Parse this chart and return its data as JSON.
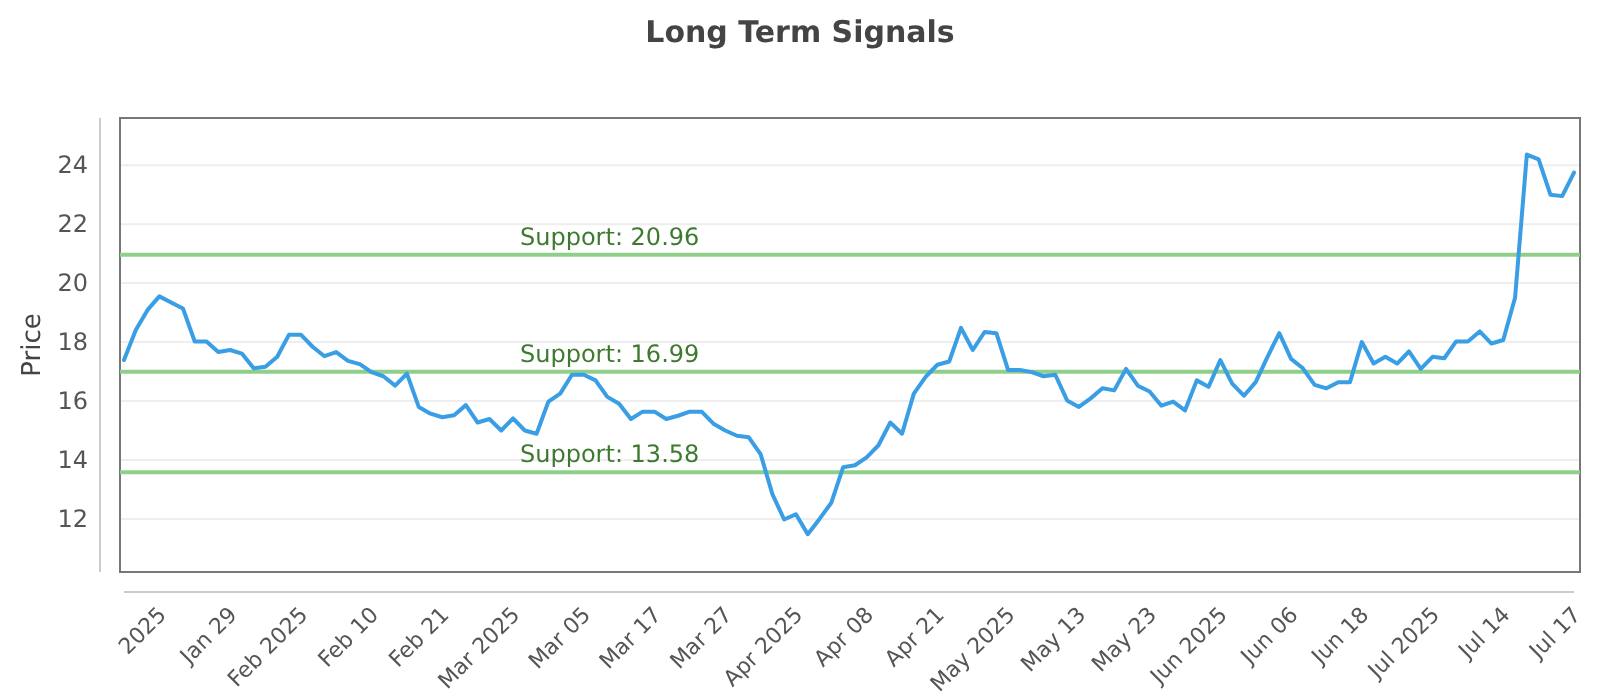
{
  "chart_data": {
    "type": "line",
    "title": "Long Term Signals",
    "ylabel": "Price",
    "categories": [
      null,
      null,
      null,
      "2025",
      null,
      null,
      null,
      null,
      null,
      "Jan 29",
      null,
      null,
      null,
      null,
      null,
      "Feb 2025",
      null,
      null,
      null,
      null,
      null,
      "Feb 10",
      null,
      null,
      null,
      null,
      null,
      "Feb 21",
      null,
      null,
      null,
      null,
      null,
      "Mar 2025",
      null,
      null,
      null,
      null,
      null,
      "Mar 05",
      null,
      null,
      null,
      null,
      null,
      "Mar 17",
      null,
      null,
      null,
      null,
      null,
      "Mar 27",
      null,
      null,
      null,
      null,
      null,
      "Apr 2025",
      null,
      null,
      null,
      null,
      null,
      "Apr 08",
      null,
      null,
      null,
      null,
      null,
      "Apr 21",
      null,
      null,
      null,
      null,
      null,
      "May 2025",
      null,
      null,
      null,
      null,
      null,
      "May 13",
      null,
      null,
      null,
      null,
      null,
      "May 23",
      null,
      null,
      null,
      null,
      null,
      "Jun 2025",
      null,
      null,
      null,
      null,
      null,
      "Jun 06",
      null,
      null,
      null,
      null,
      null,
      "Jun 18",
      null,
      null,
      null,
      null,
      null,
      "Jul 2025",
      null,
      null,
      null,
      null,
      null,
      "Jul 14",
      null,
      null,
      null,
      null,
      null,
      "Jul 17"
    ],
    "series": [
      {
        "color": "#3a9ee4",
        "values": [
          17.39,
          18.41,
          19.09,
          19.55,
          19.34,
          19.14,
          18.02,
          18.02,
          17.66,
          17.73,
          17.61,
          17.11,
          17.16,
          17.5,
          18.25,
          18.25,
          17.84,
          17.52,
          17.66,
          17.36,
          17.25,
          16.98,
          16.84,
          16.52,
          16.93,
          15.8,
          15.57,
          15.45,
          15.52,
          15.86,
          15.27,
          15.39,
          15.0,
          15.41,
          15.0,
          14.89,
          15.98,
          16.25,
          16.89,
          16.89,
          16.7,
          16.14,
          15.91,
          15.39,
          15.64,
          15.64,
          15.39,
          15.5,
          15.64,
          15.64,
          15.23,
          15.0,
          14.82,
          14.77,
          14.2,
          12.84,
          11.98,
          12.16,
          11.48,
          12.0,
          12.55,
          13.75,
          13.82,
          14.09,
          14.5,
          15.27,
          14.89,
          16.25,
          16.82,
          17.23,
          17.34,
          18.48,
          17.73,
          18.34,
          18.3,
          17.05,
          17.05,
          16.98,
          16.84,
          16.89,
          16.02,
          15.8,
          16.09,
          16.43,
          16.36,
          17.09,
          16.52,
          16.32,
          15.84,
          15.98,
          15.68,
          16.7,
          16.48,
          17.39,
          16.59,
          16.18,
          16.64,
          17.5,
          18.3,
          17.43,
          17.11,
          16.55,
          16.43,
          16.64,
          16.64,
          18.0,
          17.27,
          17.5,
          17.27,
          17.68,
          17.09,
          17.5,
          17.45,
          18.02,
          18.02,
          18.36,
          17.95,
          18.07,
          19.5,
          24.36,
          24.2,
          23.0,
          22.95,
          23.75
        ]
      }
    ],
    "ylim": [
      10.2,
      25.6
    ],
    "yticks": [
      12,
      14,
      16,
      18,
      20,
      22,
      24
    ],
    "grid": "y",
    "ref_lines": [
      {
        "axis": "y",
        "value": 20.96,
        "label": "Support: 20.96",
        "color": "#8fcf8a"
      },
      {
        "axis": "y",
        "value": 16.99,
        "label": "Support: 16.99",
        "color": "#8fcf8a"
      },
      {
        "axis": "y",
        "value": 13.58,
        "label": "Support: 13.58",
        "color": "#8fcf8a"
      }
    ]
  }
}
